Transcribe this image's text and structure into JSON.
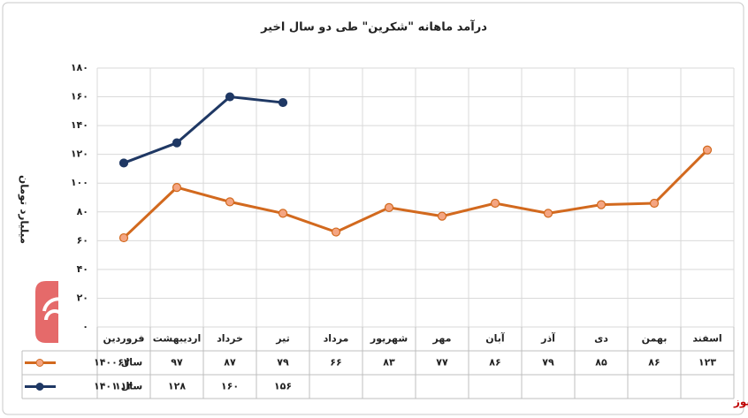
{
  "chart_data": {
    "type": "line",
    "title": "درآمد ماهانه \"شکرین\" طی دو سال اخیر",
    "y_label": "میلیارد تومان",
    "watermark": "بورس نیوز",
    "categories": [
      "فروردین",
      "اردیبهشت",
      "خرداد",
      "تیر",
      "مرداد",
      "شهریور",
      "مهر",
      "آبان",
      "آذر",
      "دی",
      "بهمن",
      "اسفند"
    ],
    "series": [
      {
        "name": "سال ۱۴۰۰",
        "color": "#d2691e",
        "marker_color": "#f4a582",
        "values": [
          62,
          97,
          87,
          79,
          66,
          83,
          77,
          86,
          79,
          85,
          86,
          123
        ],
        "value_labels": [
          "۶۲",
          "۹۷",
          "۸۷",
          "۷۹",
          "۶۶",
          "۸۳",
          "۷۷",
          "۸۶",
          "۷۹",
          "۸۵",
          "۸۶",
          "۱۲۳"
        ]
      },
      {
        "name": "سال ۱۴۰۱",
        "color": "#1f3864",
        "marker_color": "#1f3864",
        "values": [
          114,
          128,
          160,
          156,
          null,
          null,
          null,
          null,
          null,
          null,
          null,
          null
        ],
        "value_labels": [
          "۱۱۴",
          "۱۲۸",
          "۱۶۰",
          "۱۵۶",
          null,
          null,
          null,
          null,
          null,
          null,
          null,
          null
        ]
      }
    ],
    "ylim": [
      0,
      180
    ],
    "yticks": [
      {
        "value": 0,
        "label": "۰"
      },
      {
        "value": 20,
        "label": "۲۰"
      },
      {
        "value": 40,
        "label": "۴۰"
      },
      {
        "value": 60,
        "label": "۶۰"
      },
      {
        "value": 80,
        "label": "۸۰"
      },
      {
        "value": 100,
        "label": "۱۰۰"
      },
      {
        "value": 120,
        "label": "۱۲۰"
      },
      {
        "value": 140,
        "label": "۱۴۰"
      },
      {
        "value": 160,
        "label": "۱۶۰"
      },
      {
        "value": 180,
        "label": "۱۸۰"
      }
    ],
    "grid": true
  }
}
